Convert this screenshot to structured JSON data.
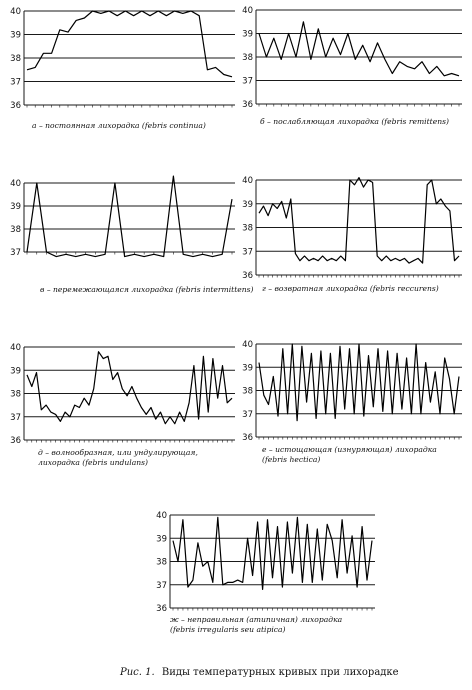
{
  "figure": {
    "label": "Рис. 1.",
    "title": "Виды температурных кривых при лихорадке"
  },
  "chart_data": [
    {
      "type": "line",
      "panel": "a",
      "caption": [
        "а – постоянная лихорадка (febris continua)"
      ],
      "ylim": [
        36,
        40
      ],
      "yticks": [
        36,
        37,
        38,
        39,
        40
      ],
      "grid": true,
      "series": [
        {
          "values": [
            37.5,
            37.6,
            38.2,
            38.2,
            39.2,
            39.1,
            39.6,
            39.7,
            40.0,
            39.9,
            40.0,
            39.8,
            40.0,
            39.8,
            40.0,
            39.8,
            40.0,
            39.8,
            40.0,
            39.9,
            40.0,
            39.8,
            37.5,
            37.6,
            37.3,
            37.2
          ]
        }
      ]
    },
    {
      "type": "line",
      "panel": "b",
      "caption": [
        "б – послабляющая лихорадка (febris remittens)"
      ],
      "ylim": [
        36,
        40
      ],
      "yticks": [
        36,
        37,
        38,
        39,
        40
      ],
      "grid": true,
      "series": [
        {
          "values": [
            39.0,
            38.0,
            38.8,
            37.9,
            39.0,
            38.0,
            39.5,
            37.9,
            39.2,
            38.0,
            38.8,
            38.1,
            39.0,
            37.9,
            38.5,
            37.8,
            38.6,
            37.9,
            37.3,
            37.8,
            37.6,
            37.5,
            37.8,
            37.3,
            37.6,
            37.2,
            37.3,
            37.2
          ]
        }
      ]
    },
    {
      "type": "line",
      "panel": "v",
      "caption": [
        "в – перемежающаяся лихорадка (febris intermittens)"
      ],
      "ylim": [
        36,
        40
      ],
      "yticks": [
        37,
        38,
        39,
        40
      ],
      "grid": true,
      "series": [
        {
          "values": [
            37.0,
            40.0,
            37.0,
            36.8,
            36.9,
            36.8,
            36.9,
            36.8,
            36.9,
            40.0,
            36.8,
            36.9,
            36.8,
            36.9,
            36.8,
            40.3,
            36.9,
            36.8,
            36.9,
            36.8,
            36.9,
            39.3
          ]
        }
      ]
    },
    {
      "type": "line",
      "panel": "g",
      "caption": [
        "г – возвратная лихорадка (febris reccurens)"
      ],
      "ylim": [
        36,
        40
      ],
      "yticks": [
        36,
        37,
        38,
        39,
        40
      ],
      "grid": true,
      "series": [
        {
          "values": [
            38.6,
            38.9,
            38.5,
            39.0,
            38.8,
            39.1,
            38.4,
            39.2,
            36.9,
            36.6,
            36.8,
            36.6,
            36.7,
            36.6,
            36.8,
            36.6,
            36.7,
            36.6,
            36.8,
            36.6,
            40.0,
            39.8,
            40.1,
            39.7,
            40.0,
            39.9,
            36.8,
            36.6,
            36.8,
            36.6,
            36.7,
            36.6,
            36.7,
            36.5,
            36.6,
            36.7,
            36.5,
            39.8,
            40.0,
            39.0,
            39.2,
            38.9,
            38.7,
            36.6,
            36.8
          ]
        }
      ]
    },
    {
      "type": "line",
      "panel": "d",
      "caption": [
        "д – волнообразная, или ундулирующая,",
        "лихорадка (febris undulans)"
      ],
      "ylim": [
        36,
        40
      ],
      "yticks": [
        36,
        37,
        38,
        39,
        40
      ],
      "grid": true,
      "series": [
        {
          "values": [
            38.8,
            38.3,
            38.9,
            37.3,
            37.5,
            37.2,
            37.1,
            36.8,
            37.2,
            37.0,
            37.5,
            37.4,
            37.8,
            37.5,
            38.2,
            39.8,
            39.5,
            39.6,
            38.6,
            38.9,
            38.2,
            37.9,
            38.3,
            37.8,
            37.4,
            37.1,
            37.4,
            36.9,
            37.2,
            36.7,
            37.0,
            36.7,
            37.2,
            36.8,
            37.6,
            39.2,
            36.9,
            39.6,
            37.2,
            39.5,
            37.8,
            39.2,
            37.6,
            37.8
          ]
        }
      ]
    },
    {
      "type": "line",
      "panel": "e",
      "caption": [
        "е – истощающая (изнуряющая) лихорадка",
        "(febris hectica)"
      ],
      "ylim": [
        36,
        40
      ],
      "yticks": [
        36,
        37,
        38,
        39,
        40
      ],
      "grid": true,
      "series": [
        {
          "values": [
            39.2,
            37.8,
            37.4,
            38.6,
            36.9,
            39.8,
            37.0,
            40.0,
            36.7,
            39.9,
            37.5,
            39.6,
            36.8,
            39.7,
            37.0,
            39.6,
            36.8,
            39.9,
            37.2,
            39.8,
            37.0,
            40.0,
            36.9,
            39.5,
            37.3,
            39.8,
            37.1,
            39.7,
            37.0,
            39.6,
            37.2,
            39.4,
            37.0,
            40.0,
            37.0,
            39.2,
            37.5,
            38.8,
            37.0,
            39.4,
            38.5,
            37.0,
            38.6
          ]
        }
      ]
    },
    {
      "type": "line",
      "panel": "zh",
      "caption": [
        "ж – неправильная (атипичная) лихорадка",
        "(febris irregularis seu atipica)"
      ],
      "ylim": [
        36,
        40
      ],
      "yticks": [
        36,
        37,
        38,
        39,
        40
      ],
      "grid": true,
      "series": [
        {
          "values": [
            38.9,
            38.0,
            39.8,
            36.9,
            37.2,
            38.8,
            37.8,
            38.0,
            37.1,
            39.9,
            37.0,
            37.1,
            37.1,
            37.2,
            37.1,
            39.0,
            37.4,
            39.7,
            36.8,
            39.8,
            37.3,
            39.5,
            36.9,
            39.7,
            37.5,
            39.9,
            37.1,
            39.6,
            37.1,
            39.4,
            37.2,
            39.6,
            38.9,
            37.3,
            39.8,
            37.5,
            39.1,
            36.9,
            39.5,
            37.2,
            38.9
          ]
        }
      ]
    }
  ]
}
